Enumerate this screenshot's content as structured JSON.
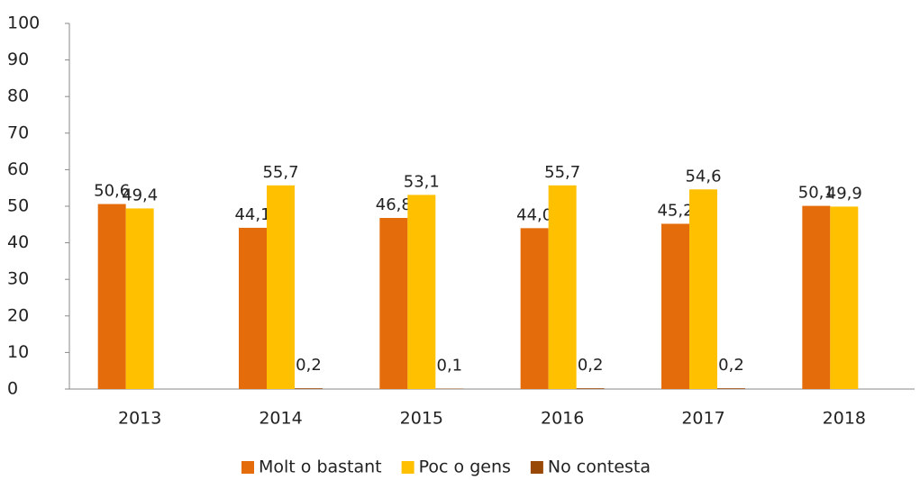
{
  "chart_data": {
    "type": "bar",
    "categories": [
      "2013",
      "2014",
      "2015",
      "2016",
      "2017",
      "2018"
    ],
    "series": [
      {
        "name": "Molt o bastant",
        "color": "#e46c0a",
        "values": [
          50.6,
          44.1,
          46.8,
          44.0,
          45.2,
          50.1
        ],
        "value_labels": [
          "50,6",
          "44,1",
          "46,8",
          "44,0",
          "45,2",
          "50,1"
        ]
      },
      {
        "name": "Poc o gens",
        "color": "#ffc000",
        "values": [
          49.4,
          55.7,
          53.1,
          55.7,
          54.6,
          49.9
        ],
        "value_labels": [
          "49,4",
          "55,7",
          "53,1",
          "55,7",
          "54,6",
          "49,9"
        ]
      },
      {
        "name": "No contesta",
        "color": "#984807",
        "values": [
          null,
          0.2,
          0.1,
          0.2,
          0.2,
          null
        ],
        "value_labels": [
          null,
          "0,2",
          "0,1",
          "0,2",
          "0,2",
          null
        ]
      }
    ],
    "ylim": [
      0,
      100
    ],
    "yticks": [
      0,
      10,
      20,
      30,
      40,
      50,
      60,
      70,
      80,
      90,
      100
    ],
    "legend": "bottom"
  }
}
